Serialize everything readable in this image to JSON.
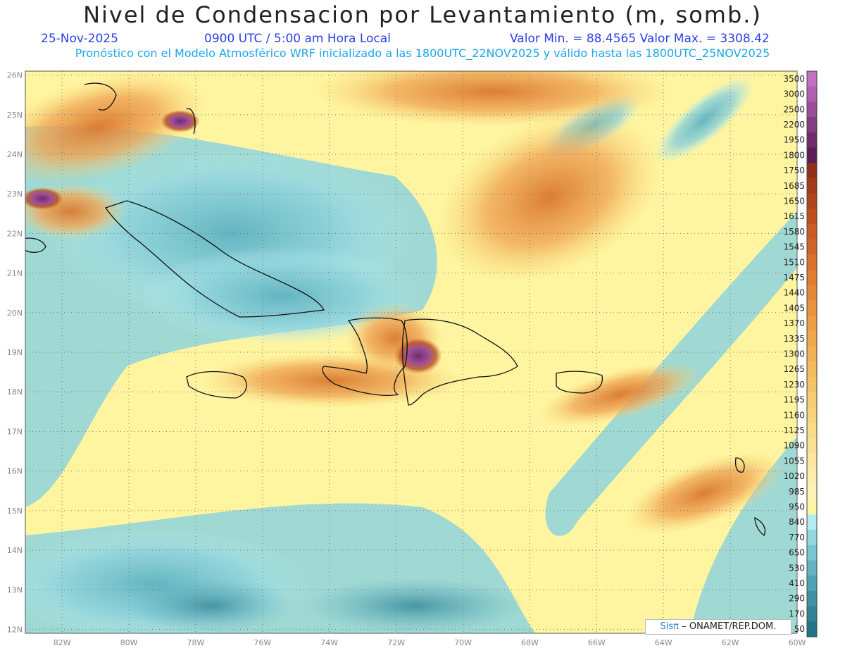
{
  "header": {
    "title": "Nivel de Condensacion por Levantamiento (m, somb.)",
    "date": "25-Nov-2025",
    "time": "0900 UTC / 5:00 am Hora Local",
    "stats": "Valor Min. = 88.4565   Valor Max. = 3308.42",
    "description": "Pronóstico con el Modelo Atmosférico WRF inicializado a las 1800UTC_22NOV2025 y válido hasta las  1800UTC_25NOV2025"
  },
  "map": {
    "lon_range": [
      -83.1,
      -60
    ],
    "lat_range": [
      11.9,
      26.1
    ],
    "lon_ticks": [
      {
        "value": -82,
        "label": "82W"
      },
      {
        "value": -80,
        "label": "80W"
      },
      {
        "value": -78,
        "label": "78W"
      },
      {
        "value": -76,
        "label": "76W"
      },
      {
        "value": -74,
        "label": "74W"
      },
      {
        "value": -72,
        "label": "72W"
      },
      {
        "value": -70,
        "label": "70W"
      },
      {
        "value": -68,
        "label": "68W"
      },
      {
        "value": -66,
        "label": "66W"
      },
      {
        "value": -64,
        "label": "64W"
      },
      {
        "value": -62,
        "label": "62W"
      },
      {
        "value": -60,
        "label": "60W"
      }
    ],
    "lat_ticks": [
      {
        "value": 26,
        "label": "26N"
      },
      {
        "value": 25,
        "label": "25N"
      },
      {
        "value": 24,
        "label": "24N"
      },
      {
        "value": 23,
        "label": "23N"
      },
      {
        "value": 22,
        "label": "22N"
      },
      {
        "value": 21,
        "label": "21N"
      },
      {
        "value": 20,
        "label": "20N"
      },
      {
        "value": 19,
        "label": "19N"
      },
      {
        "value": 18,
        "label": "18N"
      },
      {
        "value": 17,
        "label": "17N"
      },
      {
        "value": 16,
        "label": "16N"
      },
      {
        "value": 15,
        "label": "15N"
      },
      {
        "value": 14,
        "label": "14N"
      },
      {
        "value": 13,
        "label": "13N"
      },
      {
        "value": 12,
        "label": "12N"
      }
    ],
    "colors": {
      "teal_dark": "#3f8e9d",
      "teal": "#5fb3c0",
      "teal_light": "#8fd3dc",
      "cyan_light": "#b7eef2",
      "yellow": "#fff5a0",
      "yellow_orange": "#f9d77c",
      "orange": "#f0a857",
      "orange_dark": "#d9782e",
      "brown": "#b24f22",
      "purple": "#6d2d6a",
      "magenta": "#a04d9c"
    }
  },
  "colorbar": {
    "labels": [
      "3500",
      "3000",
      "2500",
      "2200",
      "1950",
      "1800",
      "1750",
      "1685",
      "1650",
      "1615",
      "1580",
      "1545",
      "1510",
      "1475",
      "1440",
      "1405",
      "1370",
      "1335",
      "1300",
      "1265",
      "1230",
      "1195",
      "1160",
      "1125",
      "1090",
      "1055",
      "1020",
      "985",
      "950",
      "840",
      "770",
      "650",
      "530",
      "410",
      "290",
      "170",
      "50"
    ],
    "colors": [
      "#c271c1",
      "#b060b1",
      "#9a4e98",
      "#843d83",
      "#6e2c6c",
      "#5b1c57",
      "#922e1c",
      "#a33a1c",
      "#b3451e",
      "#c04f20",
      "#cb5a24",
      "#d46528",
      "#db712c",
      "#e27c31",
      "#e78836",
      "#eb933c",
      "#ee9e43",
      "#f0a84b",
      "#f2b254",
      "#f4bb5e",
      "#f5c468",
      "#f7cc73",
      "#f8d47e",
      "#f9db89",
      "#fae195",
      "#fbe7a1",
      "#fcecad",
      "#fdf1b8",
      "#fef5a4",
      "#b4ecf2",
      "#93d6e0",
      "#79c6d2",
      "#64b4c3",
      "#4fa2b3",
      "#3f92a4",
      "#328396",
      "#24748a"
    ]
  },
  "credit": {
    "sis": "Sisπ",
    "org": "– ONAMET/REP.DOM."
  }
}
